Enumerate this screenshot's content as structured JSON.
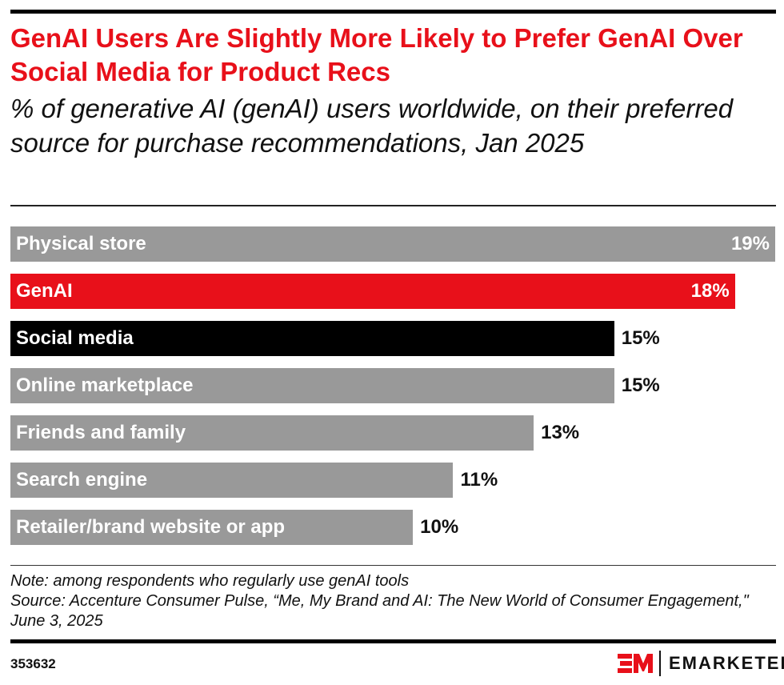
{
  "chart_data": {
    "type": "bar",
    "orientation": "horizontal",
    "title": "GenAI Users Are Slightly More Likely to Prefer GenAI Over Social Media for Product Recs",
    "subtitle": "% of generative AI (genAI) users worldwide, on their preferred source for purchase recommendations, Jan 2025",
    "categories": [
      "Physical store",
      "GenAI",
      "Social media",
      "Online marketplace",
      "Friends and family",
      "Search engine",
      "Retailer/brand website or app"
    ],
    "values": [
      19,
      18,
      15,
      15,
      13,
      11,
      10
    ],
    "value_labels": [
      "19%",
      "18%",
      "15%",
      "15%",
      "13%",
      "11%",
      "10%"
    ],
    "colors": [
      "#999999",
      "#e8101a",
      "#000000",
      "#999999",
      "#999999",
      "#999999",
      "#999999"
    ],
    "xlim": [
      0,
      19
    ],
    "grid": false
  },
  "notes": {
    "note": "Note: among respondents who regularly use genAI tools",
    "source": "Source: Accenture Consumer Pulse, “Me, My Brand and AI: The New World of Consumer Engagement,\" June 3, 2025"
  },
  "footer": {
    "chart_id": "353632",
    "brand": "EMARKETER",
    "accent": "#e8101a"
  }
}
